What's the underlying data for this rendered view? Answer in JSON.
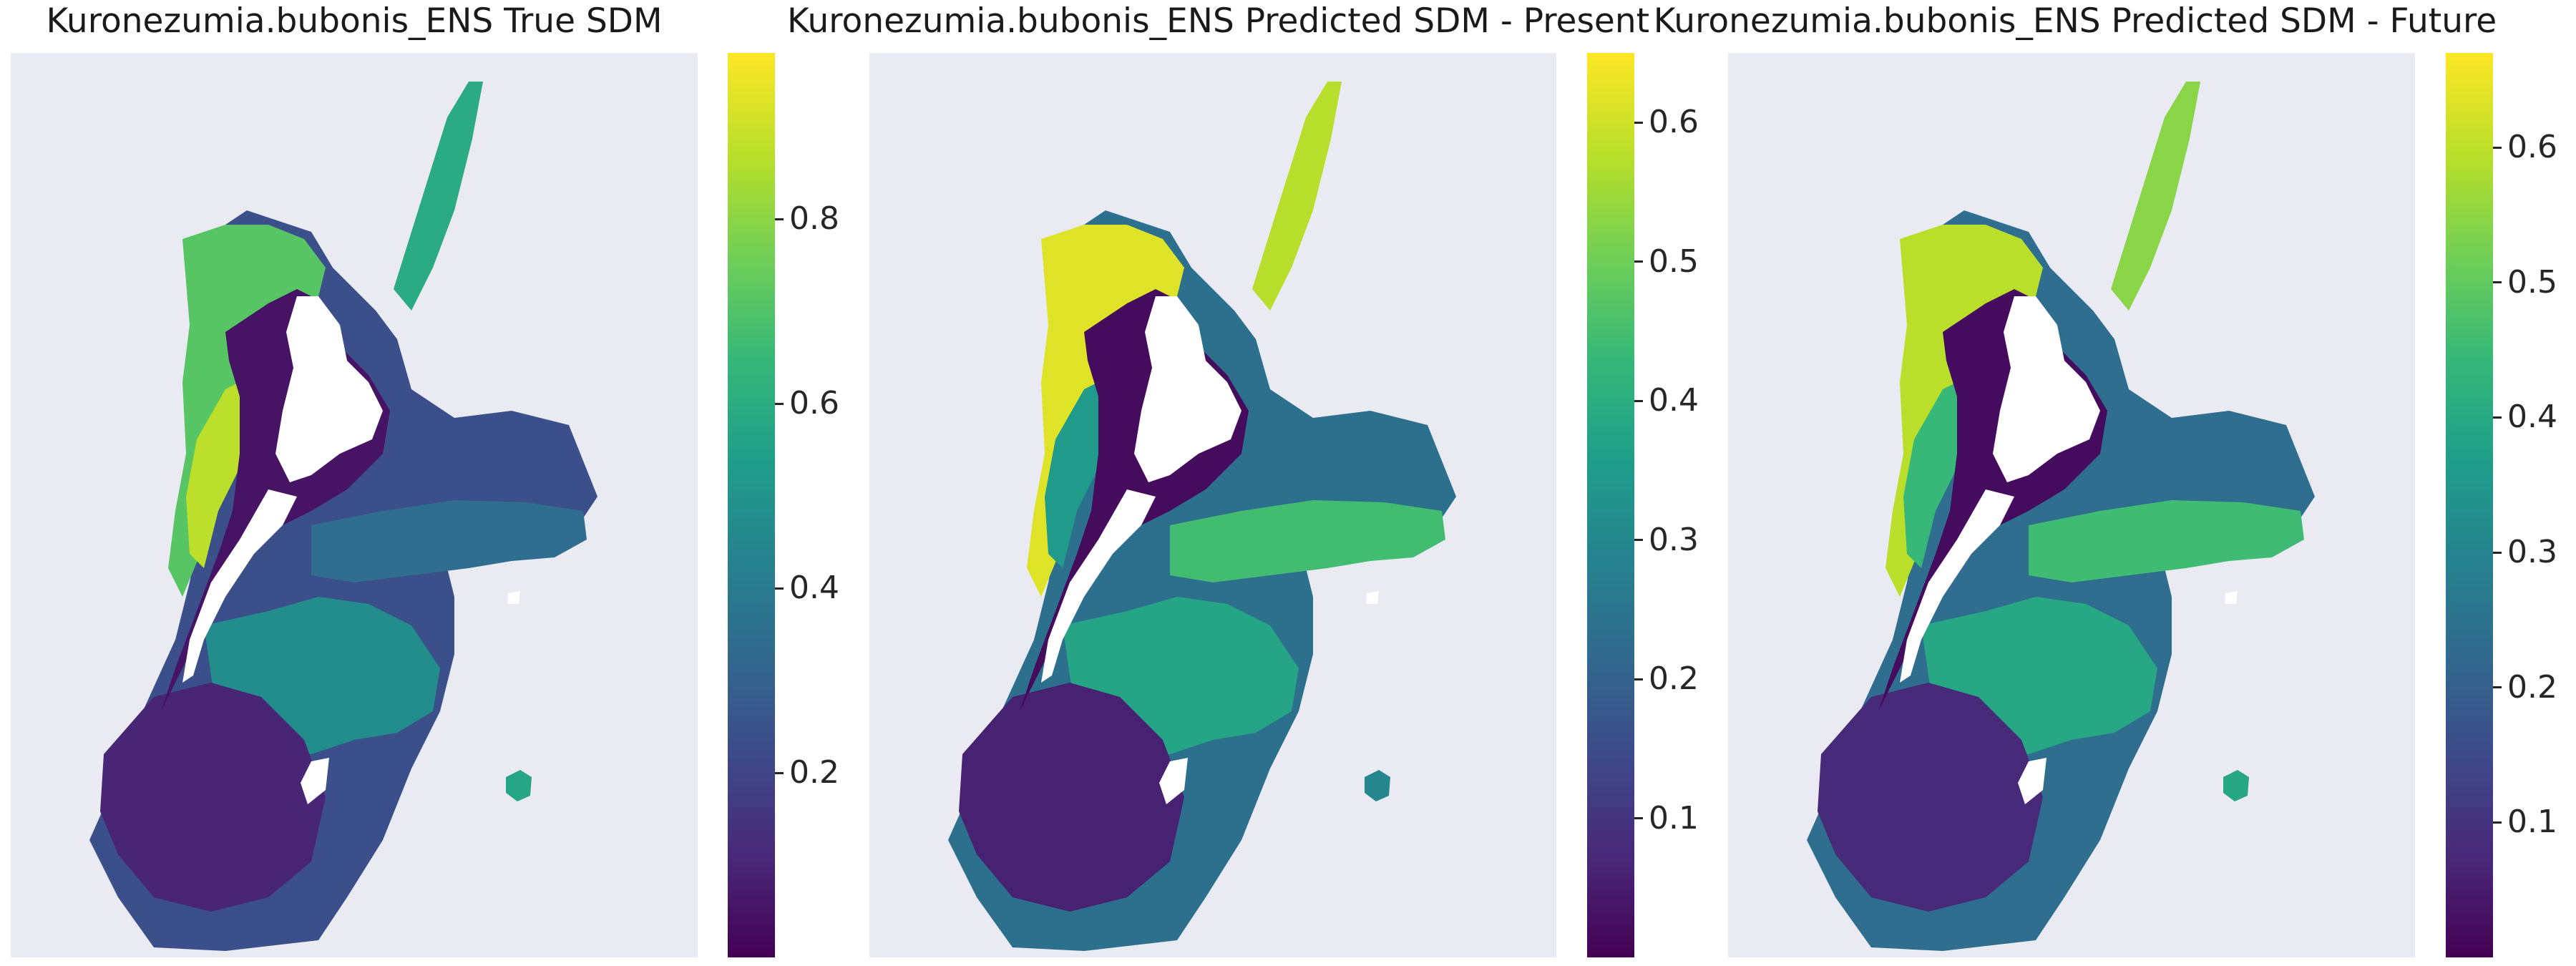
{
  "colormap": "viridis",
  "colors": {
    "background": "#eaeaf2",
    "viridis": [
      "#440154",
      "#482878",
      "#3e4989",
      "#31688e",
      "#26828e",
      "#1f9e89",
      "#35b779",
      "#6ece58",
      "#b5de2b",
      "#fde725"
    ]
  },
  "panels": [
    {
      "title": "Kuronezumia.bubonis_ENS True SDM",
      "colorbar": {
        "min": 0.0,
        "max": 0.98,
        "ticks": [
          0.2,
          0.4,
          0.6,
          0.8
        ]
      },
      "regions": {
        "west_shelf": 0.72,
        "far_west_band": 0.88,
        "northeast_ridge": 0.6,
        "chatham_rise": 0.35,
        "south_east_plateau": 0.48,
        "south_plateau": 0.1,
        "coastal_ring": 0.05,
        "bounty_islet": 0.58
      }
    },
    {
      "title": "Kuronezumia.bubonis_ENS Predicted SDM - Present",
      "colorbar": {
        "min": 0.0,
        "max": 0.65,
        "ticks": [
          0.1,
          0.2,
          0.3,
          0.4,
          0.5,
          0.6
        ]
      },
      "regions": {
        "west_shelf": 0.62,
        "far_west_band": 0.35,
        "northeast_ridge": 0.58,
        "chatham_rise": 0.45,
        "south_east_plateau": 0.38,
        "south_plateau": 0.06,
        "coastal_ring": 0.02,
        "bounty_islet": 0.3
      }
    },
    {
      "title": "Kuronezumia.bubonis_ENS Predicted SDM - Future",
      "colorbar": {
        "min": 0.0,
        "max": 0.67,
        "ticks": [
          0.1,
          0.2,
          0.3,
          0.4,
          0.5,
          0.6
        ]
      },
      "regions": {
        "west_shelf": 0.6,
        "far_west_band": 0.45,
        "northeast_ridge": 0.55,
        "chatham_rise": 0.46,
        "south_east_plateau": 0.4,
        "south_plateau": 0.08,
        "coastal_ring": 0.02,
        "bounty_islet": 0.4
      }
    }
  ],
  "chart_data": [
    {
      "type": "heatmap",
      "title": "Kuronezumia.bubonis_ENS True SDM",
      "colormap": "viridis",
      "value_range": [
        0.0,
        0.98
      ],
      "colorbar_ticks": [
        0.2,
        0.4,
        0.6,
        0.8
      ],
      "grid": false
    },
    {
      "type": "heatmap",
      "title": "Kuronezumia.bubonis_ENS Predicted SDM - Present",
      "colormap": "viridis",
      "value_range": [
        0.0,
        0.65
      ],
      "colorbar_ticks": [
        0.1,
        0.2,
        0.3,
        0.4,
        0.5,
        0.6
      ],
      "grid": false
    },
    {
      "type": "heatmap",
      "title": "Kuronezumia.bubonis_ENS Predicted SDM - Future",
      "colormap": "viridis",
      "value_range": [
        0.0,
        0.67
      ],
      "colorbar_ticks": [
        0.1,
        0.2,
        0.3,
        0.4,
        0.5,
        0.6
      ],
      "grid": false
    }
  ]
}
